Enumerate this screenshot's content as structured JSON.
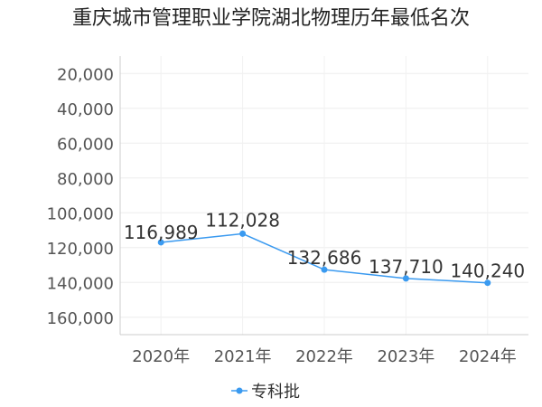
{
  "chart_data": {
    "type": "line",
    "title": "重庆城市管理职业学院湖北物理历年最低名次",
    "categories": [
      "2020年",
      "2021年",
      "2022年",
      "2023年",
      "2024年"
    ],
    "series": [
      {
        "name": "专科批",
        "values": [
          116989,
          112028,
          132686,
          137710,
          140240
        ],
        "color": "#3a9af0"
      }
    ],
    "data_labels": [
      "116,989",
      "112,028",
      "132,686",
      "137,710",
      "140,240"
    ],
    "y_axis": {
      "reversed": true,
      "ylim": [
        10000,
        170000
      ],
      "ticks": [
        20000,
        40000,
        60000,
        80000,
        100000,
        120000,
        140000,
        160000
      ],
      "tick_labels": [
        "20,000",
        "40,000",
        "60,000",
        "80,000",
        "100,000",
        "120,000",
        "140,000",
        "160,000"
      ]
    },
    "grid": true,
    "legend": {
      "position": "bottom",
      "labels": [
        "专科批"
      ]
    }
  }
}
